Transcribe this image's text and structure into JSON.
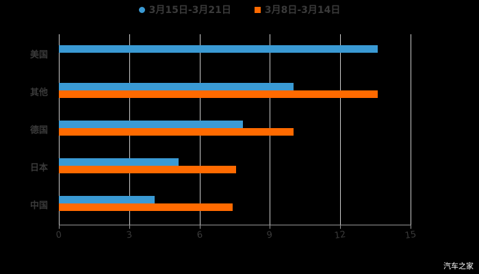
{
  "chart_data": {
    "type": "bar",
    "orientation": "horizontal",
    "title": "",
    "xlabel": "",
    "ylabel": "",
    "categories": [
      "美国",
      "其他",
      "德国",
      "日本",
      "中国"
    ],
    "series": [
      {
        "name": "3月15日-3月21日",
        "color": "#3a9ad4",
        "values": [
          13.6,
          10.0,
          7.85,
          5.1,
          4.1
        ]
      },
      {
        "name": "3月8日-3月14日",
        "color": "#ff6a00",
        "values": [
          null,
          13.6,
          10.0,
          7.55,
          7.4
        ]
      }
    ],
    "xlim": [
      0,
      15
    ],
    "x_ticks": [
      "0",
      "3",
      "6",
      "9",
      "12",
      "15"
    ],
    "grid": true,
    "legend_position": "top"
  },
  "legend": {
    "series1": "3月15日-3月21日",
    "series2": "3月8日-3月14日"
  },
  "watermark": "汽车之家"
}
